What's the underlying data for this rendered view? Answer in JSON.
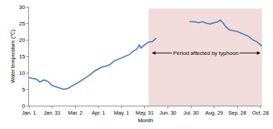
{
  "chart_data": {
    "type": "line",
    "x_label": "Month",
    "y_label": "Water temperature (℃)",
    "x": [
      0,
      5,
      10,
      14,
      17,
      20,
      25,
      28,
      31,
      35,
      38,
      42,
      45,
      50,
      55,
      60,
      65,
      70,
      75,
      80,
      85,
      90,
      95,
      100,
      105,
      110,
      115,
      120,
      125,
      130,
      135,
      140,
      143,
      145,
      150,
      155,
      160,
      165,
      185,
      208,
      215,
      220,
      225,
      230,
      235,
      240,
      245,
      248,
      252,
      255,
      260,
      265,
      270,
      275,
      280,
      285,
      290,
      295,
      300,
      302
    ],
    "values": [
      8.5,
      8.2,
      8.0,
      7.2,
      7.5,
      7.8,
      7.3,
      6.5,
      6.0,
      5.8,
      5.5,
      5.2,
      5.0,
      5.2,
      5.8,
      6.5,
      7.2,
      8.0,
      8.8,
      9.5,
      10.5,
      11.2,
      11.8,
      12.0,
      12.5,
      13.5,
      14.0,
      14.5,
      15.0,
      15.5,
      16.5,
      17.2,
      18.5,
      17.5,
      18.5,
      19.3,
      19.5,
      20.5,
      null,
      25.5,
      25.5,
      25.2,
      25.5,
      25.0,
      24.8,
      25.2,
      25.5,
      26.0,
      25.0,
      24.0,
      23.0,
      22.8,
      22.5,
      22.0,
      21.5,
      21.0,
      20.0,
      19.5,
      18.5,
      18.0
    ],
    "color": "#4a7ebb",
    "xlim": [
      0,
      302
    ],
    "xticks": [
      {
        "value": 0,
        "label": "Jan. 1"
      },
      {
        "value": 30,
        "label": "Jan. 31"
      },
      {
        "value": 60,
        "label": "Mar. 2"
      },
      {
        "value": 90,
        "label": "Apr. 1"
      },
      {
        "value": 120,
        "label": "May. 1"
      },
      {
        "value": 150,
        "label": "May. 31"
      },
      {
        "value": 180,
        "label": "Jun. 30"
      },
      {
        "value": 210,
        "label": "Jul. 30"
      },
      {
        "value": 240,
        "label": "Aug. 29"
      },
      {
        "value": 270,
        "label": "Sep. 28"
      },
      {
        "value": 300,
        "label": "Oct. 28"
      }
    ],
    "ylim": [
      0,
      30
    ],
    "yticks": [
      0,
      5,
      10,
      15,
      20,
      25,
      30
    ],
    "grid": false,
    "shaded_region": {
      "x0": 155,
      "x1": 302,
      "y0": 0,
      "y1": 29.5,
      "color": "#f2dcdb"
    },
    "annotation": {
      "text": "Period affected by typhoon",
      "x0": 158,
      "x1": 300,
      "y": 16
    }
  }
}
